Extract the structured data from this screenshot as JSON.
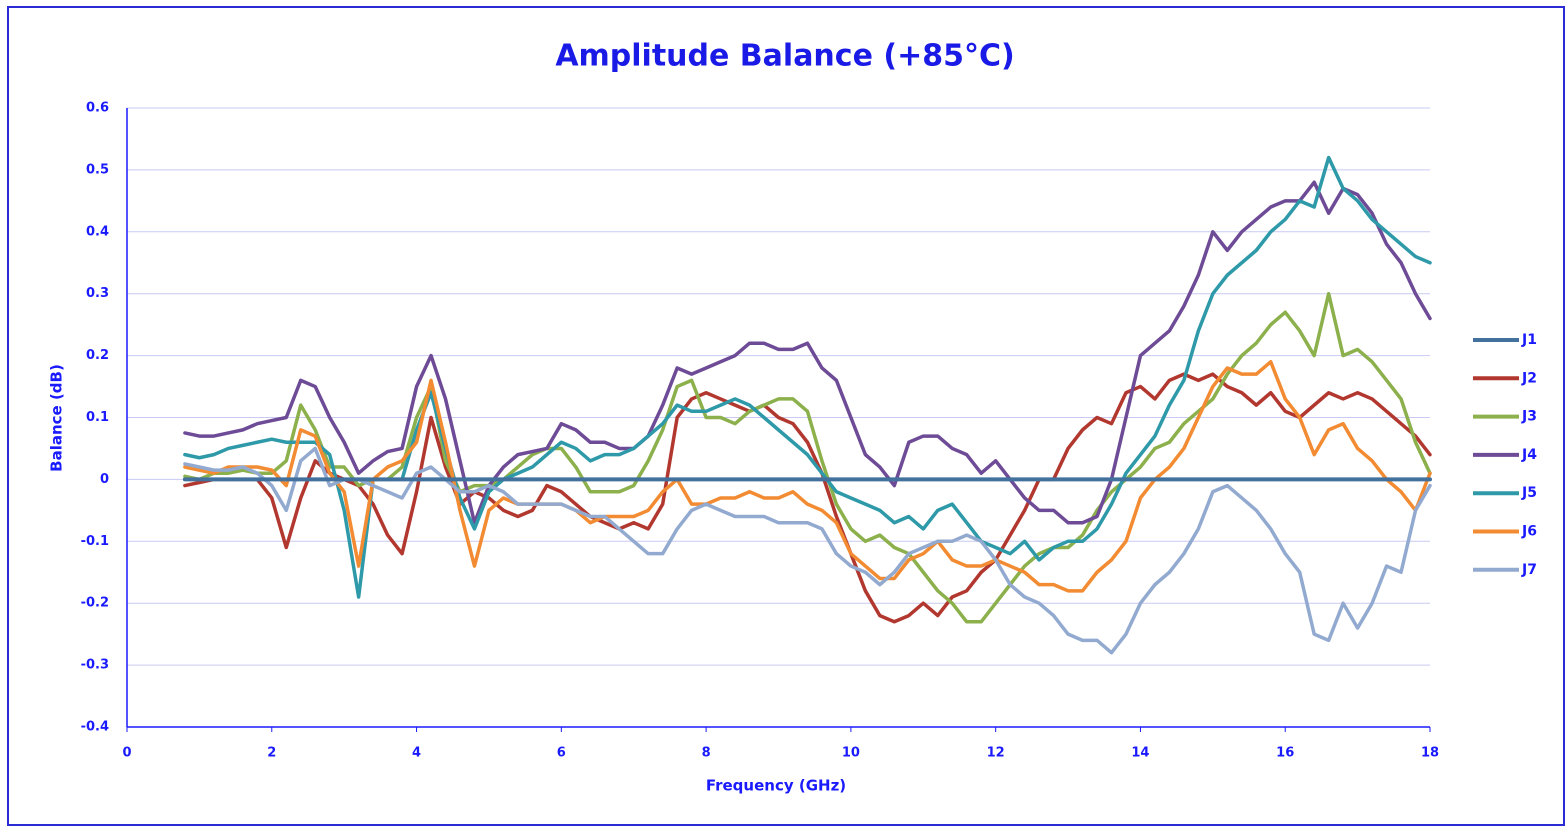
{
  "chart_data": {
    "type": "line",
    "title": "Amplitude Balance (+85°C)",
    "x_label": "Frequency (GHz)",
    "y_label": "Balance (dB)",
    "xlim": [
      0,
      18
    ],
    "xticks": [
      0,
      2,
      4,
      6,
      8,
      10,
      12,
      14,
      16,
      18
    ],
    "ylim": [
      -0.4,
      0.6
    ],
    "yticks": [
      -0.4,
      -0.3,
      -0.2,
      -0.1,
      0,
      0.1,
      0.2,
      0.3,
      0.4,
      0.5,
      0.6
    ],
    "grid": true,
    "legend": "right",
    "x": [
      0.8,
      1,
      1.2,
      1.4,
      1.6,
      1.8,
      2,
      2.2,
      2.4,
      2.6,
      2.8,
      3,
      3.2,
      3.4,
      3.6,
      3.8,
      4,
      4.2,
      4.4,
      4.6,
      4.8,
      5,
      5.2,
      5.4,
      5.6,
      5.8,
      6,
      6.2,
      6.4,
      6.6,
      6.8,
      7,
      7.2,
      7.4,
      7.6,
      7.8,
      8,
      8.2,
      8.4,
      8.6,
      8.8,
      9,
      9.2,
      9.4,
      9.6,
      9.8,
      10,
      10.2,
      10.4,
      10.6,
      10.8,
      11,
      11.2,
      11.4,
      11.6,
      11.8,
      12,
      12.2,
      12.4,
      12.6,
      12.8,
      13,
      13.2,
      13.4,
      13.6,
      13.8,
      14,
      14.2,
      14.4,
      14.6,
      14.8,
      15,
      15.2,
      15.4,
      15.6,
      15.8,
      16,
      16.2,
      16.4,
      16.6,
      16.8,
      17,
      17.2,
      17.4,
      17.6,
      17.8,
      18
    ],
    "series": [
      {
        "name": "J1",
        "color": "#41719c",
        "values": [
          0,
          0,
          0,
          0,
          0,
          0,
          0,
          0,
          0,
          0,
          0,
          0,
          0,
          0,
          0,
          0,
          0,
          0,
          0,
          0,
          0,
          0,
          0,
          0,
          0,
          0,
          0,
          0,
          0,
          0,
          0,
          0,
          0,
          0,
          0,
          0,
          0,
          0,
          0,
          0,
          0,
          0,
          0,
          0,
          0,
          0,
          0,
          0,
          0,
          0,
          0,
          0,
          0,
          0,
          0,
          0,
          0,
          0,
          0,
          0,
          0,
          0,
          0,
          0,
          0,
          0,
          0,
          0,
          0,
          0,
          0,
          0,
          0,
          0,
          0,
          0,
          0,
          0,
          0,
          0,
          0,
          0,
          0,
          0,
          0,
          0,
          0
        ]
      },
      {
        "name": "J2",
        "color": "#b2382f",
        "values": [
          -0.01,
          -0.005,
          0,
          0,
          0,
          0,
          -0.03,
          -0.11,
          -0.03,
          0.03,
          0.01,
          0,
          -0.01,
          -0.04,
          -0.09,
          -0.12,
          -0.02,
          0.1,
          0.02,
          -0.04,
          -0.02,
          -0.03,
          -0.05,
          -0.06,
          -0.05,
          -0.01,
          -0.02,
          -0.04,
          -0.06,
          -0.07,
          -0.08,
          -0.07,
          -0.08,
          -0.04,
          0.1,
          0.13,
          0.14,
          0.13,
          0.12,
          0.11,
          0.12,
          0.1,
          0.09,
          0.06,
          0.01,
          -0.06,
          -0.12,
          -0.18,
          -0.22,
          -0.23,
          -0.22,
          -0.2,
          -0.22,
          -0.19,
          -0.18,
          -0.15,
          -0.13,
          -0.09,
          -0.05,
          0,
          0,
          0.05,
          0.08,
          0.1,
          0.09,
          0.14,
          0.15,
          0.13,
          0.16,
          0.17,
          0.16,
          0.17,
          0.15,
          0.14,
          0.12,
          0.14,
          0.11,
          0.1,
          0.12,
          0.14,
          0.13,
          0.14,
          0.13,
          0.11,
          0.09,
          0.07,
          0.04
        ]
      },
      {
        "name": "J3",
        "color": "#8cb04c",
        "values": [
          0.005,
          0,
          0.01,
          0.01,
          0.015,
          0.01,
          0.01,
          0.03,
          0.12,
          0.08,
          0.02,
          0.02,
          -0.01,
          0,
          0,
          0.02,
          0.1,
          0.15,
          0.03,
          -0.02,
          -0.01,
          -0.01,
          0,
          0.02,
          0.04,
          0.05,
          0.05,
          0.02,
          -0.02,
          -0.02,
          -0.02,
          -0.01,
          0.03,
          0.08,
          0.15,
          0.16,
          0.1,
          0.1,
          0.09,
          0.11,
          0.12,
          0.13,
          0.13,
          0.11,
          0.03,
          -0.04,
          -0.08,
          -0.1,
          -0.09,
          -0.11,
          -0.12,
          -0.15,
          -0.18,
          -0.2,
          -0.23,
          -0.23,
          -0.2,
          -0.17,
          -0.14,
          -0.12,
          -0.11,
          -0.11,
          -0.09,
          -0.05,
          -0.02,
          0,
          0.02,
          0.05,
          0.06,
          0.09,
          0.11,
          0.13,
          0.17,
          0.2,
          0.22,
          0.25,
          0.27,
          0.24,
          0.2,
          0.3,
          0.2,
          0.21,
          0.19,
          0.16,
          0.13,
          0.06,
          0.01
        ]
      },
      {
        "name": "J4",
        "color": "#6e4b96",
        "values": [
          0.075,
          0.07,
          0.07,
          0.075,
          0.08,
          0.09,
          0.095,
          0.1,
          0.16,
          0.15,
          0.1,
          0.06,
          0.01,
          0.03,
          0.045,
          0.05,
          0.15,
          0.2,
          0.13,
          0.03,
          -0.07,
          -0.01,
          0.02,
          0.04,
          0.045,
          0.05,
          0.09,
          0.08,
          0.06,
          0.06,
          0.05,
          0.05,
          0.07,
          0.12,
          0.18,
          0.17,
          0.18,
          0.19,
          0.2,
          0.22,
          0.22,
          0.21,
          0.21,
          0.22,
          0.18,
          0.16,
          0.1,
          0.04,
          0.02,
          -0.01,
          0.06,
          0.07,
          0.07,
          0.05,
          0.04,
          0.01,
          0.03,
          0,
          -0.03,
          -0.05,
          -0.05,
          -0.07,
          -0.07,
          -0.06,
          0,
          0.1,
          0.2,
          0.22,
          0.24,
          0.28,
          0.33,
          0.4,
          0.37,
          0.4,
          0.42,
          0.44,
          0.45,
          0.45,
          0.48,
          0.43,
          0.47,
          0.46,
          0.43,
          0.38,
          0.35,
          0.3,
          0.26
        ]
      },
      {
        "name": "J5",
        "color": "#2e99a8",
        "values": [
          0.04,
          0.035,
          0.04,
          0.05,
          0.055,
          0.06,
          0.065,
          0.06,
          0.06,
          0.06,
          0.04,
          -0.05,
          -0.19,
          0,
          0,
          0,
          0.08,
          0.14,
          0.05,
          -0.03,
          -0.08,
          -0.02,
          0,
          0.01,
          0.02,
          0.04,
          0.06,
          0.05,
          0.03,
          0.04,
          0.04,
          0.05,
          0.07,
          0.09,
          0.12,
          0.11,
          0.11,
          0.12,
          0.13,
          0.12,
          0.1,
          0.08,
          0.06,
          0.04,
          0.01,
          -0.02,
          -0.03,
          -0.04,
          -0.05,
          -0.07,
          -0.06,
          -0.08,
          -0.05,
          -0.04,
          -0.07,
          -0.1,
          -0.11,
          -0.12,
          -0.1,
          -0.13,
          -0.11,
          -0.1,
          -0.1,
          -0.08,
          -0.04,
          0.01,
          0.04,
          0.07,
          0.12,
          0.16,
          0.24,
          0.3,
          0.33,
          0.35,
          0.37,
          0.4,
          0.42,
          0.45,
          0.44,
          0.52,
          0.47,
          0.45,
          0.42,
          0.4,
          0.38,
          0.36,
          0.35
        ]
      },
      {
        "name": "J6",
        "color": "#f28b32",
        "values": [
          0.02,
          0.015,
          0.01,
          0.02,
          0.02,
          0.02,
          0.015,
          -0.01,
          0.08,
          0.07,
          0.01,
          -0.02,
          -0.14,
          0,
          0.02,
          0.03,
          0.06,
          0.16,
          0.06,
          -0.05,
          -0.14,
          -0.05,
          -0.03,
          -0.04,
          -0.04,
          -0.04,
          -0.04,
          -0.05,
          -0.07,
          -0.06,
          -0.06,
          -0.06,
          -0.05,
          -0.02,
          0,
          -0.04,
          -0.04,
          -0.03,
          -0.03,
          -0.02,
          -0.03,
          -0.03,
          -0.02,
          -0.04,
          -0.05,
          -0.07,
          -0.12,
          -0.14,
          -0.16,
          -0.16,
          -0.13,
          -0.12,
          -0.1,
          -0.13,
          -0.14,
          -0.14,
          -0.13,
          -0.14,
          -0.15,
          -0.17,
          -0.17,
          -0.18,
          -0.18,
          -0.15,
          -0.13,
          -0.1,
          -0.03,
          0,
          0.02,
          0.05,
          0.1,
          0.15,
          0.18,
          0.17,
          0.17,
          0.19,
          0.13,
          0.1,
          0.04,
          0.08,
          0.09,
          0.05,
          0.03,
          0,
          -0.02,
          -0.05,
          0.01
        ]
      },
      {
        "name": "J7",
        "color": "#93aad0",
        "values": [
          0.025,
          0.02,
          0.015,
          0.015,
          0.02,
          0.01,
          -0.01,
          -0.05,
          0.03,
          0.05,
          -0.01,
          0,
          0,
          -0.01,
          -0.02,
          -0.03,
          0.01,
          0.02,
          0,
          -0.02,
          -0.02,
          -0.01,
          -0.02,
          -0.04,
          -0.04,
          -0.04,
          -0.04,
          -0.05,
          -0.06,
          -0.06,
          -0.08,
          -0.1,
          -0.12,
          -0.12,
          -0.08,
          -0.05,
          -0.04,
          -0.05,
          -0.06,
          -0.06,
          -0.06,
          -0.07,
          -0.07,
          -0.07,
          -0.08,
          -0.12,
          -0.14,
          -0.15,
          -0.17,
          -0.15,
          -0.12,
          -0.11,
          -0.1,
          -0.1,
          -0.09,
          -0.1,
          -0.13,
          -0.17,
          -0.19,
          -0.2,
          -0.22,
          -0.25,
          -0.26,
          -0.26,
          -0.28,
          -0.25,
          -0.2,
          -0.17,
          -0.15,
          -0.12,
          -0.08,
          -0.02,
          -0.01,
          -0.03,
          -0.05,
          -0.08,
          -0.12,
          -0.15,
          -0.25,
          -0.26,
          -0.2,
          -0.24,
          -0.2,
          -0.14,
          -0.15,
          -0.05,
          -0.01
        ]
      }
    ]
  }
}
